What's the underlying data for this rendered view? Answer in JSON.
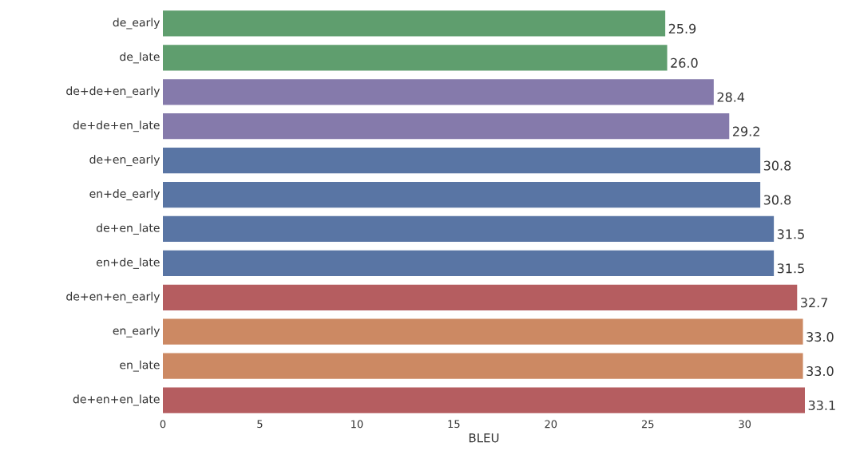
{
  "chart_data": {
    "type": "bar",
    "orientation": "horizontal",
    "xlabel": "BLEU",
    "categories": [
      "de_early",
      "de_late",
      "de+de+en_early",
      "de+de+en_late",
      "de+en_early",
      "en+de_early",
      "de+en_late",
      "en+de_late",
      "de+en+en_early",
      "en_early",
      "en_late",
      "de+en+en_late"
    ],
    "values": [
      25.9,
      26.0,
      28.4,
      29.2,
      30.8,
      30.8,
      31.5,
      31.5,
      32.7,
      33.0,
      33.0,
      33.1
    ],
    "value_labels": [
      "25.9",
      "26.0",
      "28.4",
      "29.2",
      "30.8",
      "30.8",
      "31.5",
      "31.5",
      "32.7",
      "33.0",
      "33.0",
      "33.1"
    ],
    "colors": [
      "#5f9e6e",
      "#5f9e6e",
      "#857aab",
      "#857aab",
      "#5975a4",
      "#5975a4",
      "#5975a4",
      "#5975a4",
      "#b55d60",
      "#cc8963",
      "#cc8963",
      "#b55d60"
    ],
    "xlim": [
      0,
      33.1
    ],
    "xticks": [
      0,
      5,
      10,
      15,
      20,
      25,
      30
    ]
  }
}
